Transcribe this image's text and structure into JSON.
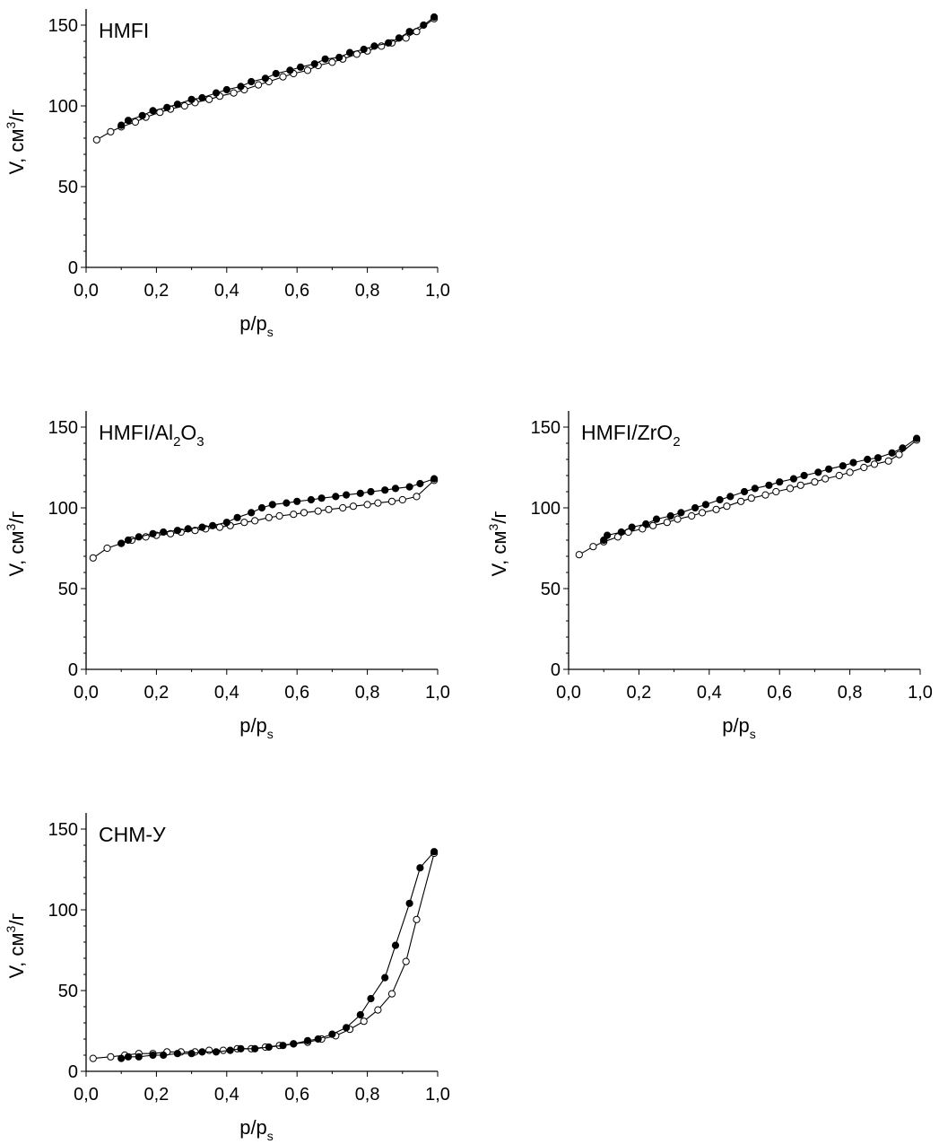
{
  "chart_data": [
    {
      "type": "scatter",
      "title": "HMFI",
      "xlabel": "p/p",
      "xlabel_sub": "s",
      "ylabel": "V, см",
      "ylabel_sup": "3",
      "ylabel_tail": "/г",
      "xlim": [
        0,
        1.0
      ],
      "ylim": [
        0,
        160
      ],
      "xticks": [
        "0,0",
        "0,2",
        "0,4",
        "0,6",
        "0,8",
        "1,0"
      ],
      "yticks": [
        "0",
        "50",
        "100",
        "150"
      ],
      "series": [
        {
          "marker": "open",
          "x": [
            0.03,
            0.07,
            0.1,
            0.14,
            0.17,
            0.21,
            0.24,
            0.28,
            0.31,
            0.35,
            0.38,
            0.42,
            0.45,
            0.49,
            0.52,
            0.56,
            0.59,
            0.63,
            0.66,
            0.7,
            0.73,
            0.77,
            0.8,
            0.84,
            0.87,
            0.91,
            0.94,
            0.99
          ],
          "y": [
            79,
            84,
            87,
            90,
            93,
            96,
            98,
            100,
            102,
            104,
            106,
            108,
            110,
            113,
            115,
            118,
            120,
            122,
            125,
            127,
            129,
            132,
            134,
            137,
            139,
            142,
            146,
            154
          ]
        },
        {
          "marker": "filled",
          "x": [
            0.99,
            0.96,
            0.92,
            0.89,
            0.86,
            0.82,
            0.79,
            0.75,
            0.72,
            0.68,
            0.65,
            0.61,
            0.58,
            0.54,
            0.51,
            0.47,
            0.44,
            0.4,
            0.37,
            0.33,
            0.3,
            0.26,
            0.23,
            0.19,
            0.16,
            0.12,
            0.1
          ],
          "y": [
            155,
            150,
            146,
            142,
            139,
            137,
            135,
            133,
            130,
            129,
            126,
            124,
            122,
            120,
            117,
            115,
            112,
            110,
            108,
            105,
            104,
            101,
            99,
            97,
            94,
            91,
            88
          ]
        }
      ]
    },
    {
      "type": "scatter",
      "title": "HMFI/Al",
      "title_sub1": "2",
      "title_mid": "O",
      "title_sub2": "3",
      "xlabel": "p/p",
      "xlabel_sub": "s",
      "ylabel": "V, см",
      "ylabel_sup": "3",
      "ylabel_tail": "/г",
      "xlim": [
        0,
        1.0
      ],
      "ylim": [
        0,
        160
      ],
      "xticks": [
        "0,0",
        "0,2",
        "0,4",
        "0,6",
        "0,8",
        "1,0"
      ],
      "yticks": [
        "0",
        "50",
        "100",
        "150"
      ],
      "series": [
        {
          "marker": "open",
          "x": [
            0.02,
            0.06,
            0.1,
            0.13,
            0.17,
            0.2,
            0.24,
            0.27,
            0.31,
            0.34,
            0.38,
            0.41,
            0.45,
            0.48,
            0.52,
            0.55,
            0.59,
            0.62,
            0.66,
            0.69,
            0.73,
            0.76,
            0.8,
            0.83,
            0.87,
            0.9,
            0.94,
            0.99
          ],
          "y": [
            69,
            75,
            78,
            80,
            82,
            83,
            84,
            85,
            86,
            87,
            88,
            89,
            91,
            92,
            94,
            95,
            96,
            97,
            98,
            99,
            100,
            101,
            102,
            103,
            104,
            105,
            107,
            117
          ]
        },
        {
          "marker": "filled",
          "x": [
            0.99,
            0.95,
            0.92,
            0.88,
            0.85,
            0.81,
            0.78,
            0.74,
            0.71,
            0.67,
            0.64,
            0.6,
            0.57,
            0.53,
            0.5,
            0.47,
            0.43,
            0.4,
            0.36,
            0.33,
            0.29,
            0.26,
            0.22,
            0.19,
            0.15,
            0.12,
            0.1
          ],
          "y": [
            118,
            115,
            113,
            112,
            111,
            110,
            109,
            108,
            107,
            106,
            105,
            104,
            103,
            102,
            100,
            97,
            94,
            91,
            89,
            88,
            87,
            86,
            85,
            84,
            82,
            80,
            78
          ]
        }
      ]
    },
    {
      "type": "scatter",
      "title": "HMFI/ZrO",
      "title_sub1": "2",
      "xlabel": "p/p",
      "xlabel_sub": "s",
      "ylabel": "V, см",
      "ylabel_sup": "3",
      "ylabel_tail": "/г",
      "xlim": [
        0,
        1.0
      ],
      "ylim": [
        0,
        160
      ],
      "xticks": [
        "0,0",
        "0,2",
        "0,4",
        "0,6",
        "0,8",
        "1,0"
      ],
      "yticks": [
        "0",
        "50",
        "100",
        "150"
      ],
      "series": [
        {
          "marker": "open",
          "x": [
            0.03,
            0.07,
            0.1,
            0.14,
            0.17,
            0.21,
            0.24,
            0.28,
            0.31,
            0.35,
            0.38,
            0.42,
            0.45,
            0.49,
            0.52,
            0.56,
            0.59,
            0.63,
            0.66,
            0.7,
            0.73,
            0.77,
            0.8,
            0.84,
            0.87,
            0.91,
            0.94,
            0.99
          ],
          "y": [
            71,
            76,
            79,
            82,
            85,
            87,
            89,
            91,
            93,
            95,
            97,
            99,
            101,
            104,
            106,
            108,
            110,
            112,
            114,
            116,
            118,
            120,
            122,
            125,
            127,
            129,
            133,
            142
          ]
        },
        {
          "marker": "filled",
          "x": [
            0.99,
            0.95,
            0.92,
            0.88,
            0.85,
            0.81,
            0.78,
            0.74,
            0.71,
            0.67,
            0.64,
            0.6,
            0.57,
            0.53,
            0.5,
            0.46,
            0.43,
            0.39,
            0.36,
            0.32,
            0.29,
            0.25,
            0.22,
            0.18,
            0.15,
            0.11,
            0.1
          ],
          "y": [
            143,
            137,
            134,
            131,
            130,
            128,
            126,
            124,
            122,
            120,
            118,
            116,
            114,
            112,
            110,
            107,
            105,
            102,
            100,
            97,
            95,
            93,
            90,
            88,
            85,
            83,
            80
          ]
        }
      ]
    },
    {
      "type": "scatter",
      "title": "СНМ-У",
      "xlabel": "p/p",
      "xlabel_sub": "s",
      "ylabel": "V, см",
      "ylabel_sup": "3",
      "ylabel_tail": "/г",
      "xlim": [
        0,
        1.0
      ],
      "ylim": [
        0,
        160
      ],
      "xticks": [
        "0,0",
        "0,2",
        "0,4",
        "0,6",
        "0,8",
        "1,0"
      ],
      "yticks": [
        "0",
        "50",
        "100",
        "150"
      ],
      "series": [
        {
          "marker": "open",
          "x": [
            0.02,
            0.07,
            0.11,
            0.15,
            0.19,
            0.23,
            0.27,
            0.31,
            0.35,
            0.39,
            0.43,
            0.47,
            0.51,
            0.55,
            0.59,
            0.63,
            0.67,
            0.71,
            0.75,
            0.79,
            0.83,
            0.87,
            0.91,
            0.94,
            0.99
          ],
          "y": [
            8,
            9,
            10,
            11,
            11,
            12,
            12,
            12,
            13,
            13,
            14,
            14,
            15,
            16,
            17,
            18,
            20,
            22,
            26,
            31,
            38,
            48,
            68,
            94,
            135
          ]
        },
        {
          "marker": "filled",
          "x": [
            0.99,
            0.95,
            0.92,
            0.88,
            0.85,
            0.81,
            0.78,
            0.74,
            0.7,
            0.66,
            0.63,
            0.59,
            0.56,
            0.52,
            0.48,
            0.44,
            0.41,
            0.37,
            0.33,
            0.3,
            0.26,
            0.22,
            0.19,
            0.15,
            0.12,
            0.1
          ],
          "y": [
            136,
            126,
            104,
            78,
            58,
            45,
            35,
            27,
            23,
            20,
            19,
            17,
            16,
            15,
            14,
            14,
            13,
            12,
            12,
            11,
            11,
            10,
            10,
            9,
            9,
            8
          ]
        }
      ]
    }
  ]
}
